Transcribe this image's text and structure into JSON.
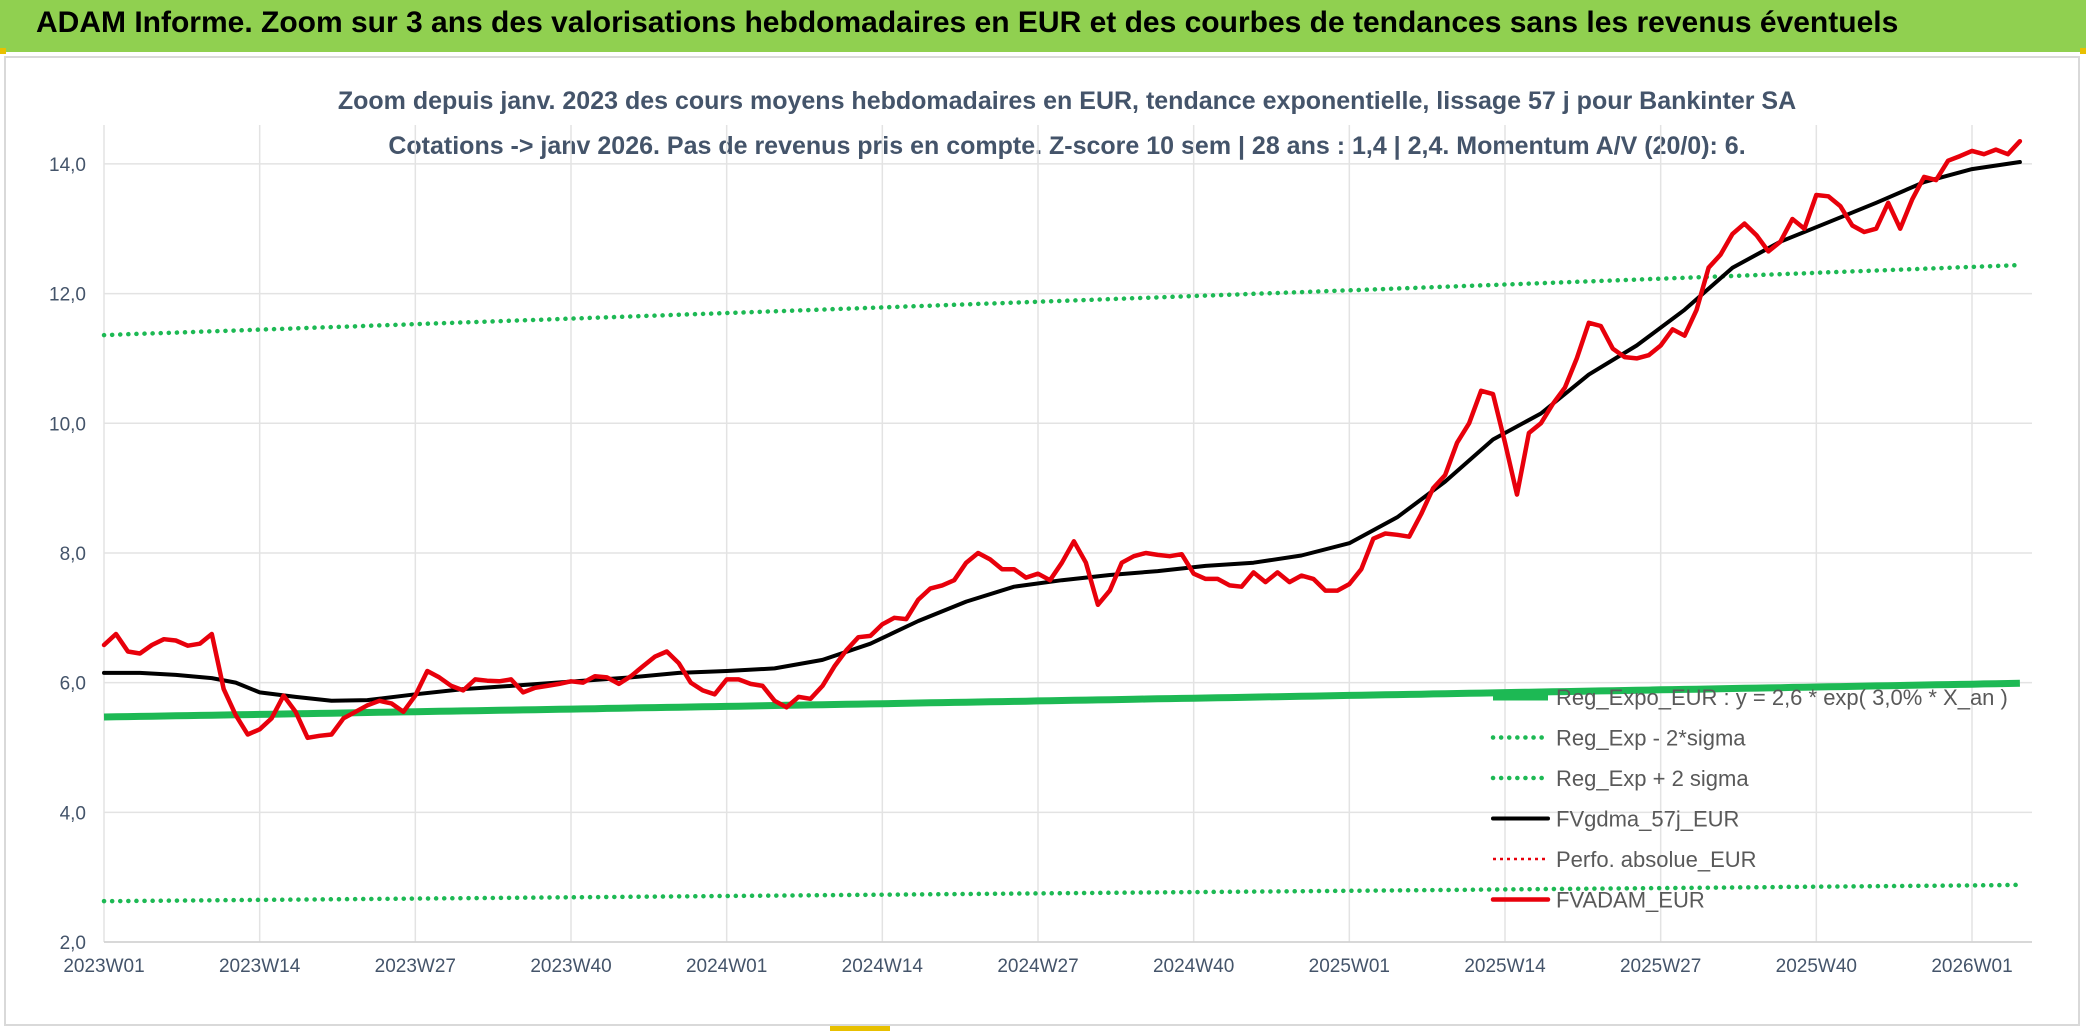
{
  "header": {
    "title": "ADAM Informe. Zoom sur 3 ans des valorisations hebdomadaires en EUR et des courbes de tendances sans les revenus éventuels",
    "bar_color": "#90d050"
  },
  "chart_data": {
    "type": "line",
    "title_line1": "Zoom depuis janv. 2023 des cours moyens hebdomadaires en EUR, tendance exponentielle, lissage 57 j pour Bankinter SA",
    "title_line2": "Cotations -> janv 2026. Pas de revenus pris en compte. Z-score 10 sem | 28 ans : 1,4 | 2,4. Momentum A/V (20/0): 6.",
    "ylim": [
      2.0,
      14.6
    ],
    "yticks": [
      2.0,
      4.0,
      6.0,
      8.0,
      10.0,
      12.0,
      14.0
    ],
    "ytick_labels": [
      "2,0",
      "4,0",
      "6,0",
      "8,0",
      "10,0",
      "12,0",
      "14,0"
    ],
    "xlim": [
      0,
      156
    ],
    "x_tick_positions": [
      0,
      13,
      26,
      39,
      52,
      65,
      78,
      91,
      104,
      117,
      130,
      143,
      156
    ],
    "x_tick_labels": [
      "2023W01",
      "2023W14",
      "2023W27",
      "2023W40",
      "2024W01",
      "2024W14",
      "2024W27",
      "2024W40",
      "2025W01",
      "2025W14",
      "2025W27",
      "2025W40",
      "2026W01"
    ],
    "x_end": 160,
    "grid": true,
    "legend_position": "bottom-right",
    "series": [
      {
        "name": "Reg_Expo_EUR : y = 2,6 * exp( 3,0% * X_an )",
        "color": "#1db954",
        "style": "solid-thick",
        "start": 5.47,
        "end": 5.99
      },
      {
        "name": "Reg_Exp - 2*sigma",
        "color": "#1db954",
        "style": "dotted",
        "start": 2.63,
        "end": 2.88
      },
      {
        "name": "Reg_Exp + 2 sigma",
        "color": "#1db954",
        "style": "dotted",
        "start": 11.36,
        "end": 12.44
      },
      {
        "name": "FVgdma_57j_EUR",
        "color": "#000000",
        "style": "solid",
        "points": [
          [
            0,
            6.15
          ],
          [
            3,
            6.15
          ],
          [
            6,
            6.12
          ],
          [
            9,
            6.07
          ],
          [
            11,
            6.0
          ],
          [
            13,
            5.85
          ],
          [
            16,
            5.78
          ],
          [
            19,
            5.72
          ],
          [
            22,
            5.73
          ],
          [
            26,
            5.82
          ],
          [
            30,
            5.9
          ],
          [
            34,
            5.95
          ],
          [
            40,
            6.03
          ],
          [
            44,
            6.08
          ],
          [
            48,
            6.15
          ],
          [
            52,
            6.18
          ],
          [
            56,
            6.22
          ],
          [
            60,
            6.35
          ],
          [
            64,
            6.6
          ],
          [
            68,
            6.95
          ],
          [
            72,
            7.25
          ],
          [
            76,
            7.48
          ],
          [
            80,
            7.58
          ],
          [
            84,
            7.66
          ],
          [
            88,
            7.72
          ],
          [
            92,
            7.8
          ],
          [
            96,
            7.85
          ],
          [
            100,
            7.96
          ],
          [
            104,
            8.15
          ],
          [
            108,
            8.55
          ],
          [
            112,
            9.1
          ],
          [
            116,
            9.75
          ],
          [
            120,
            10.15
          ],
          [
            124,
            10.75
          ],
          [
            128,
            11.2
          ],
          [
            132,
            11.75
          ],
          [
            136,
            12.4
          ],
          [
            140,
            12.8
          ],
          [
            144,
            13.1
          ],
          [
            148,
            13.4
          ],
          [
            152,
            13.72
          ],
          [
            156,
            13.92
          ],
          [
            160,
            14.03
          ]
        ]
      },
      {
        "name": "Perfo. absolue_EUR",
        "color": "#e8000b",
        "style": "dotted-thin",
        "points": []
      },
      {
        "name": "FVADAM_EUR",
        "color": "#e8000b",
        "style": "solid-thick",
        "points": [
          [
            0,
            6.58
          ],
          [
            1,
            6.75
          ],
          [
            2,
            6.48
          ],
          [
            3,
            6.45
          ],
          [
            4,
            6.58
          ],
          [
            5,
            6.67
          ],
          [
            6,
            6.65
          ],
          [
            7,
            6.57
          ],
          [
            8,
            6.6
          ],
          [
            9,
            6.75
          ],
          [
            10,
            5.9
          ],
          [
            11,
            5.5
          ],
          [
            12,
            5.2
          ],
          [
            13,
            5.28
          ],
          [
            14,
            5.45
          ],
          [
            15,
            5.8
          ],
          [
            16,
            5.55
          ],
          [
            17,
            5.15
          ],
          [
            18,
            5.18
          ],
          [
            19,
            5.2
          ],
          [
            20,
            5.45
          ],
          [
            21,
            5.55
          ],
          [
            22,
            5.65
          ],
          [
            23,
            5.72
          ],
          [
            24,
            5.68
          ],
          [
            25,
            5.55
          ],
          [
            26,
            5.8
          ],
          [
            27,
            6.18
          ],
          [
            28,
            6.08
          ],
          [
            29,
            5.95
          ],
          [
            30,
            5.88
          ],
          [
            31,
            6.05
          ],
          [
            32,
            6.03
          ],
          [
            33,
            6.02
          ],
          [
            34,
            6.05
          ],
          [
            35,
            5.85
          ],
          [
            36,
            5.92
          ],
          [
            37,
            5.95
          ],
          [
            38,
            5.98
          ],
          [
            39,
            6.02
          ],
          [
            40,
            6.0
          ],
          [
            41,
            6.1
          ],
          [
            42,
            6.08
          ],
          [
            43,
            5.98
          ],
          [
            44,
            6.1
          ],
          [
            45,
            6.25
          ],
          [
            46,
            6.4
          ],
          [
            47,
            6.48
          ],
          [
            48,
            6.3
          ],
          [
            49,
            6.0
          ],
          [
            50,
            5.88
          ],
          [
            51,
            5.82
          ],
          [
            52,
            6.05
          ],
          [
            53,
            6.05
          ],
          [
            54,
            5.98
          ],
          [
            55,
            5.95
          ],
          [
            56,
            5.72
          ],
          [
            57,
            5.62
          ],
          [
            58,
            5.78
          ],
          [
            59,
            5.75
          ],
          [
            60,
            5.95
          ],
          [
            61,
            6.25
          ],
          [
            62,
            6.5
          ],
          [
            63,
            6.7
          ],
          [
            64,
            6.72
          ],
          [
            65,
            6.9
          ],
          [
            66,
            7.0
          ],
          [
            67,
            6.98
          ],
          [
            68,
            7.28
          ],
          [
            69,
            7.45
          ],
          [
            70,
            7.5
          ],
          [
            71,
            7.58
          ],
          [
            72,
            7.85
          ],
          [
            73,
            8.0
          ],
          [
            74,
            7.9
          ],
          [
            75,
            7.75
          ],
          [
            76,
            7.75
          ],
          [
            77,
            7.62
          ],
          [
            78,
            7.68
          ],
          [
            79,
            7.58
          ],
          [
            80,
            7.85
          ],
          [
            81,
            8.18
          ],
          [
            82,
            7.85
          ],
          [
            83,
            7.2
          ],
          [
            84,
            7.42
          ],
          [
            85,
            7.85
          ],
          [
            86,
            7.95
          ],
          [
            87,
            8.0
          ],
          [
            88,
            7.97
          ],
          [
            89,
            7.95
          ],
          [
            90,
            7.98
          ],
          [
            91,
            7.68
          ],
          [
            92,
            7.6
          ],
          [
            93,
            7.6
          ],
          [
            94,
            7.5
          ],
          [
            95,
            7.48
          ],
          [
            96,
            7.7
          ],
          [
            97,
            7.55
          ],
          [
            98,
            7.7
          ],
          [
            99,
            7.55
          ],
          [
            100,
            7.65
          ],
          [
            101,
            7.6
          ],
          [
            102,
            7.42
          ],
          [
            103,
            7.42
          ],
          [
            104,
            7.52
          ],
          [
            105,
            7.75
          ],
          [
            106,
            8.22
          ],
          [
            107,
            8.3
          ],
          [
            108,
            8.28
          ],
          [
            109,
            8.25
          ],
          [
            110,
            8.6
          ],
          [
            111,
            9.0
          ],
          [
            112,
            9.2
          ],
          [
            113,
            9.7
          ],
          [
            114,
            10.0
          ],
          [
            115,
            10.5
          ],
          [
            116,
            10.45
          ],
          [
            117,
            9.7
          ],
          [
            118,
            8.9
          ],
          [
            119,
            9.85
          ],
          [
            120,
            10.0
          ],
          [
            121,
            10.3
          ],
          [
            122,
            10.55
          ],
          [
            123,
            11.0
          ],
          [
            124,
            11.55
          ],
          [
            125,
            11.5
          ],
          [
            126,
            11.15
          ],
          [
            127,
            11.02
          ],
          [
            128,
            11.0
          ],
          [
            129,
            11.05
          ],
          [
            130,
            11.2
          ],
          [
            131,
            11.45
          ],
          [
            132,
            11.35
          ],
          [
            133,
            11.75
          ],
          [
            134,
            12.4
          ],
          [
            135,
            12.6
          ],
          [
            136,
            12.92
          ],
          [
            137,
            13.08
          ],
          [
            138,
            12.9
          ],
          [
            139,
            12.65
          ],
          [
            140,
            12.8
          ],
          [
            141,
            13.15
          ],
          [
            142,
            13.0
          ],
          [
            143,
            13.52
          ],
          [
            144,
            13.5
          ],
          [
            145,
            13.35
          ],
          [
            146,
            13.05
          ],
          [
            147,
            12.95
          ],
          [
            148,
            13.0
          ],
          [
            149,
            13.4
          ],
          [
            150,
            13.0
          ],
          [
            151,
            13.45
          ],
          [
            152,
            13.8
          ],
          [
            153,
            13.75
          ],
          [
            154,
            14.05
          ],
          [
            155,
            14.12
          ],
          [
            156,
            14.2
          ],
          [
            157,
            14.15
          ],
          [
            158,
            14.22
          ],
          [
            159,
            14.15
          ],
          [
            160,
            14.35
          ]
        ]
      }
    ]
  }
}
